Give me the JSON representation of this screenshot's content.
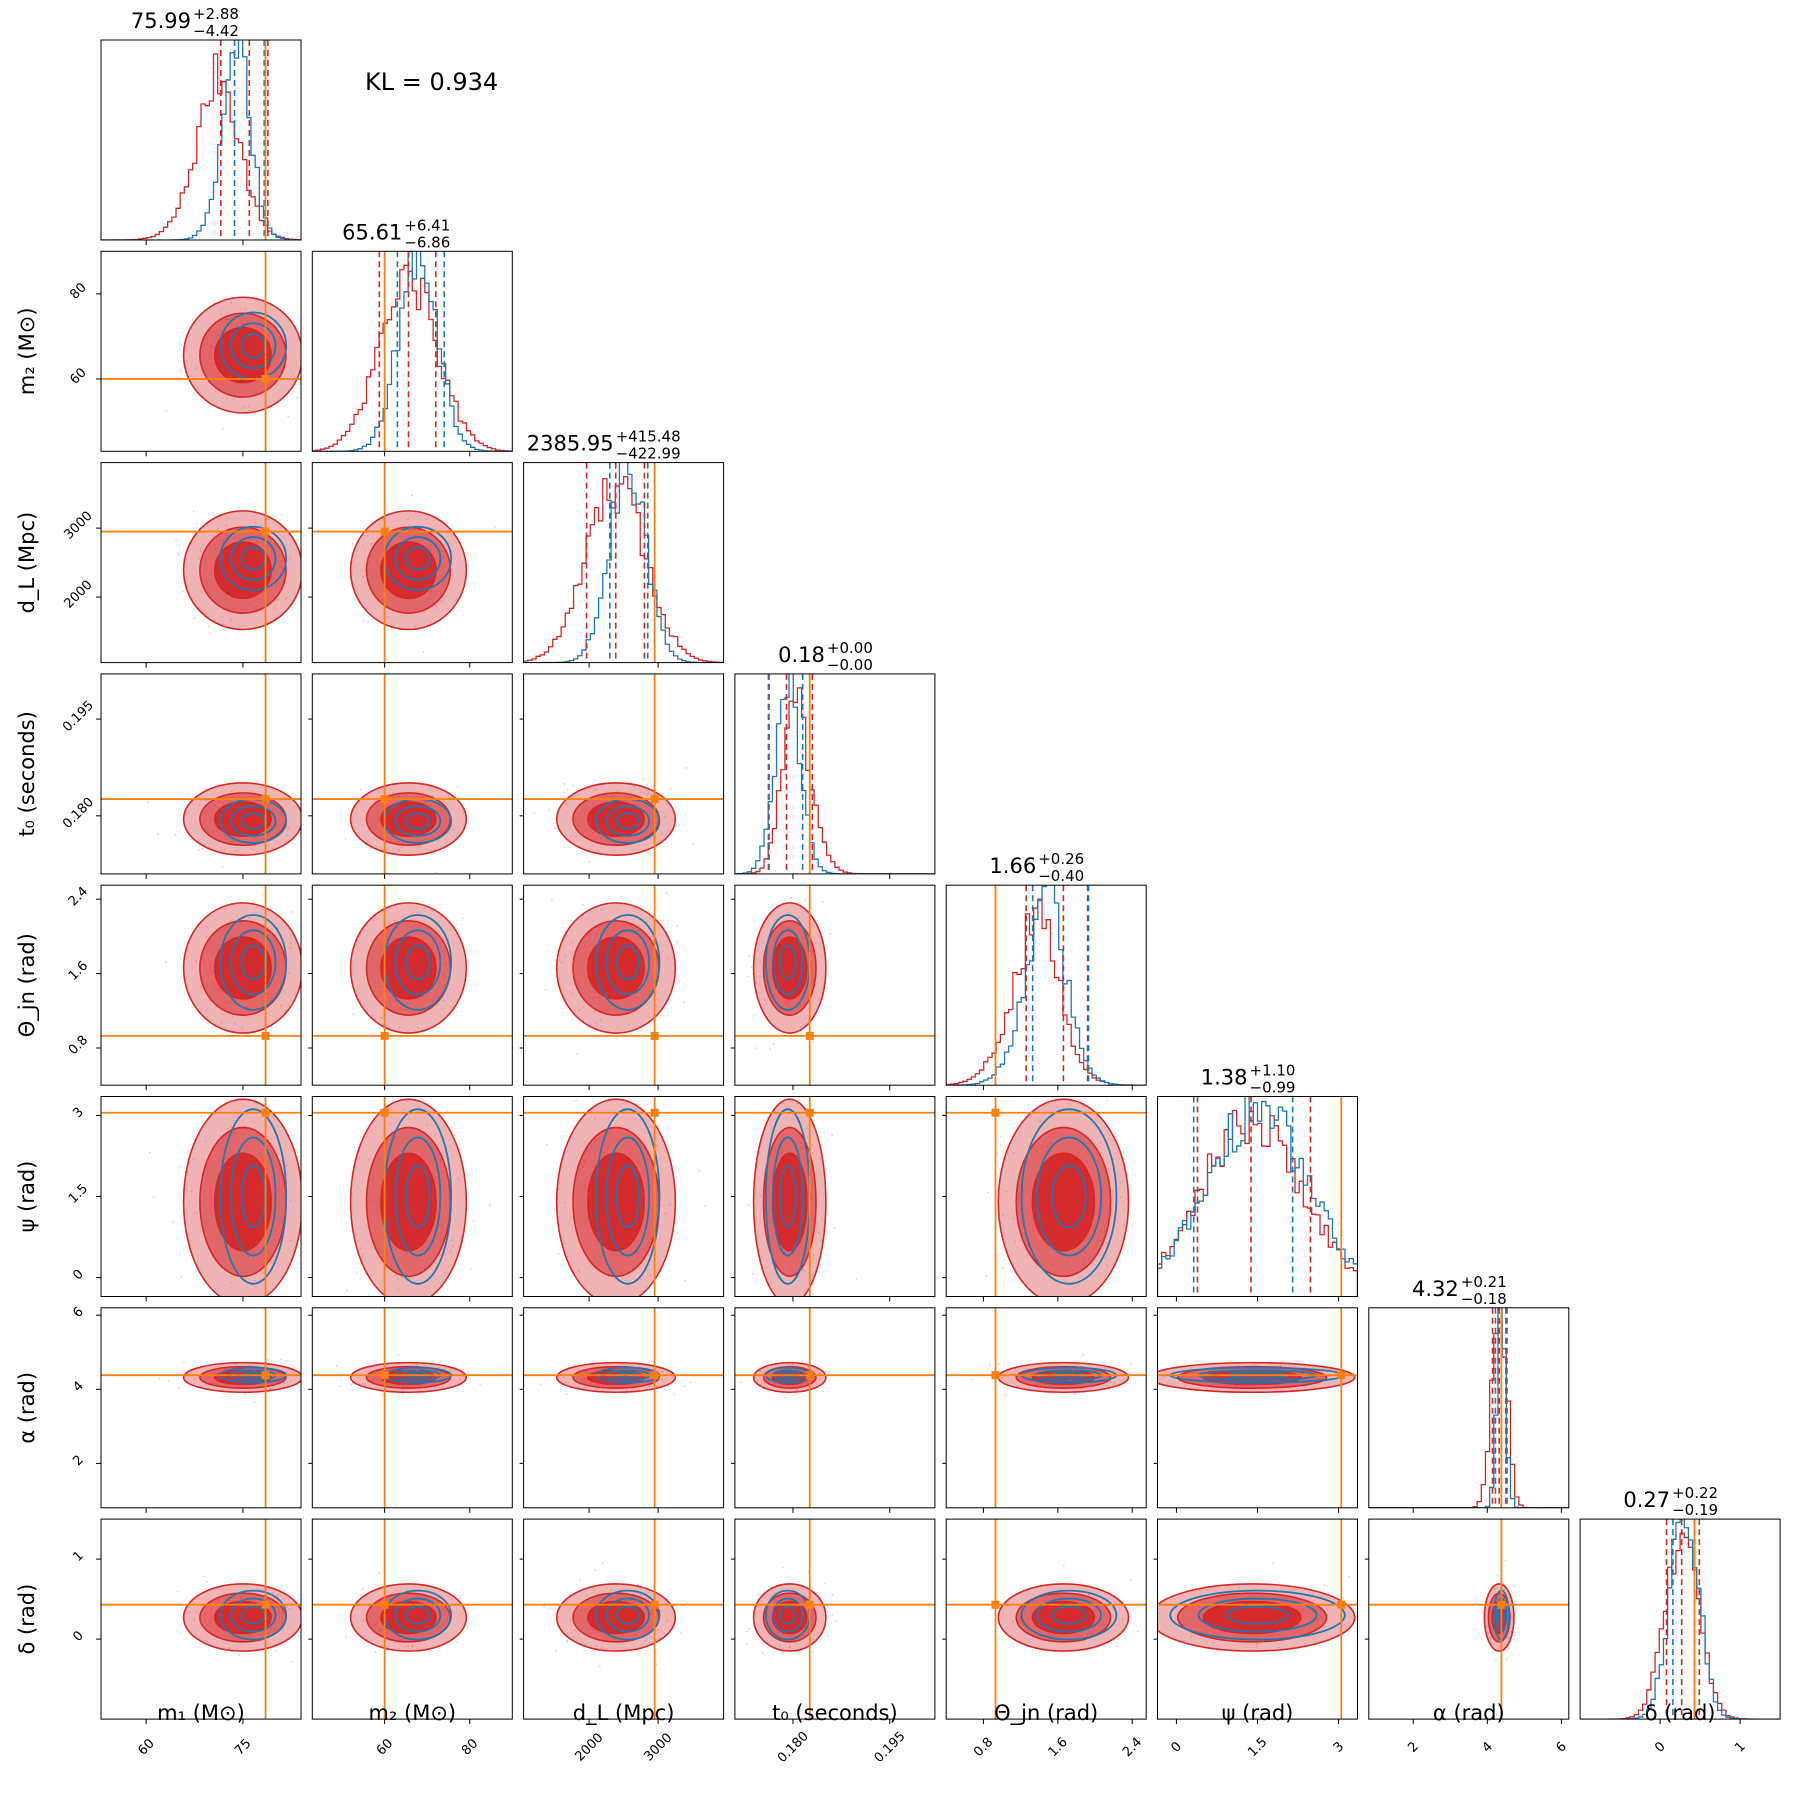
{
  "chart_data": {
    "type": "corner",
    "kl_label": "KL = 0.934",
    "grid": false,
    "series": [
      {
        "name": "",
        "color": "#d62728",
        "style": "filled contours + step histograms + scatter"
      },
      {
        "name": "",
        "color": "#1f77b4",
        "style": "contour lines + step histograms"
      }
    ],
    "truth_color": "#ff7f0e",
    "parameters": [
      {
        "key": "m1",
        "label": "m₁ (M⊙)",
        "range": [
          53,
          84
        ],
        "ticks": [
          60,
          75
        ],
        "truth": 78.5,
        "red": {
          "mean": 75.0,
          "sd": 4.6,
          "skew": -1
        },
        "blue": {
          "mean": 76.6,
          "sd": 3.0,
          "skew": -1
        },
        "title": {
          "value": "75.99",
          "plus": "+2.88",
          "minus": "−4.42"
        },
        "q_red": [
          71.57,
          75.99,
          78.87
        ],
        "q_blue": [
          73.7,
          78.3
        ]
      },
      {
        "key": "m2",
        "label": "m₂ (M⊙)",
        "range": [
          43,
          90
        ],
        "ticks": [
          60,
          80
        ],
        "truth": 60,
        "red": {
          "mean": 65.6,
          "sd": 6.8,
          "skew": 0
        },
        "blue": {
          "mean": 67.8,
          "sd": 4.6,
          "skew": 0
        },
        "title": {
          "value": "65.61",
          "plus": "+6.41",
          "minus": "−6.86"
        },
        "q_red": [
          58.75,
          65.61,
          72.02
        ],
        "q_blue": [
          63.0,
          74.0
        ]
      },
      {
        "key": "dL",
        "label": "d_L (Mpc)",
        "range": [
          1050,
          3950
        ],
        "ticks": [
          2000,
          3000
        ],
        "truth": 2950,
        "red": {
          "mean": 2390,
          "sd": 430,
          "skew": 0
        },
        "blue": {
          "mean": 2560,
          "sd": 270,
          "skew": 0
        },
        "title": {
          "value": "2385.95",
          "plus": "+415.48",
          "minus": "−422.99"
        },
        "q_red": [
          1962.96,
          2385.95,
          2801.43
        ],
        "q_blue": [
          2300,
          2850
        ]
      },
      {
        "key": "t0",
        "label": "t₀ (seconds)",
        "range": [
          0.171,
          0.202
        ],
        "ticks": [
          0.18,
          0.195
        ],
        "truth": 0.1826,
        "red": {
          "mean": 0.1795,
          "sd": 0.0028,
          "skew": 1
        },
        "blue": {
          "mean": 0.1792,
          "sd": 0.002,
          "skew": 0
        },
        "title": {
          "value": "0.18",
          "plus": "+0.00",
          "minus": "−0.00"
        },
        "q_red": [
          0.1762,
          0.179,
          0.183
        ],
        "q_blue": [
          0.1763,
          0.1815
        ]
      },
      {
        "key": "theta",
        "label": "Θ_jn (rad)",
        "range": [
          0.4,
          2.55
        ],
        "ticks": [
          0.8,
          1.6,
          2.4
        ],
        "truth": 0.93,
        "red": {
          "mean": 1.66,
          "sd": 0.35,
          "skew": -1
        },
        "blue": {
          "mean": 1.72,
          "sd": 0.3,
          "skew": -1
        },
        "title": {
          "value": "1.66",
          "plus": "+0.26",
          "minus": "−0.40"
        },
        "q_red": [
          1.26,
          1.66,
          1.92
        ],
        "q_blue": [
          1.33,
          1.93
        ]
      },
      {
        "key": "psi",
        "label": "ψ (rad)",
        "range": [
          -0.35,
          3.35
        ],
        "ticks": [
          0.0,
          1.5,
          3.0
        ],
        "truth": 3.05,
        "red": {
          "mean": 1.4,
          "sd": 0.95,
          "skew": 0
        },
        "blue": {
          "mean": 1.5,
          "sd": 0.95,
          "skew": 0
        },
        "title": {
          "value": "1.38",
          "plus": "+1.10",
          "minus": "−0.99"
        },
        "q_red": [
          0.39,
          1.38,
          2.48
        ],
        "q_blue": [
          0.32,
          2.15
        ]
      },
      {
        "key": "alpha",
        "label": "α (rad)",
        "range": [
          0.8,
          6.2
        ],
        "ticks": [
          2,
          4,
          6
        ],
        "truth": 4.38,
        "red": {
          "mean": 4.32,
          "sd": 0.2,
          "skew": 0
        },
        "blue": {
          "mean": 4.38,
          "sd": 0.12,
          "skew": 0
        },
        "title": {
          "value": "4.32",
          "plus": "+0.21",
          "minus": "−0.18"
        },
        "q_red": [
          4.14,
          4.32,
          4.53
        ],
        "q_blue": [
          4.22,
          4.5
        ]
      },
      {
        "key": "delta",
        "label": "δ (rad)",
        "range": [
          -1.0,
          1.5
        ],
        "ticks": [
          0,
          1
        ],
        "truth": 0.43,
        "red": {
          "mean": 0.27,
          "sd": 0.21,
          "skew": 0
        },
        "blue": {
          "mean": 0.3,
          "sd": 0.18,
          "skew": 0
        },
        "title": {
          "value": "0.27",
          "plus": "+0.22",
          "minus": "−0.19"
        },
        "q_red": [
          0.08,
          0.27,
          0.49
        ],
        "q_blue": [
          0.16,
          0.43
        ]
      }
    ]
  }
}
